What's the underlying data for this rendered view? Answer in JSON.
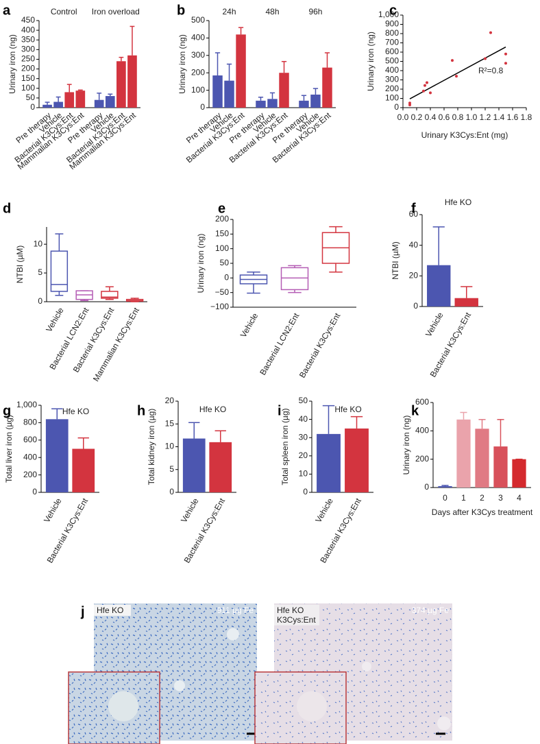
{
  "chart_data": [
    {
      "panel": "a",
      "type": "bar",
      "ylabel": "Urinary iron (ng)",
      "groups": [
        "Control",
        "Iron overload"
      ],
      "categories": [
        "Pre therapy",
        "Vehicle",
        "Bacterial K3Cys:Ent",
        "Mammalian K3Cys:Ent",
        "Pre therapy",
        "Vehicle",
        "Bacterial K3Cys:Ent",
        "Mammalian K3Cys:Ent"
      ],
      "values": [
        15,
        30,
        80,
        88,
        40,
        60,
        240,
        270
      ],
      "errors": [
        13,
        25,
        40,
        3,
        35,
        10,
        20,
        150
      ],
      "colors": [
        "#4c56b0",
        "#4c56b0",
        "#d3343f",
        "#d3343f",
        "#4c56b0",
        "#4c56b0",
        "#d3343f",
        "#d3343f"
      ],
      "ylim": [
        0,
        450
      ],
      "yticks": [
        0,
        50,
        100,
        150,
        200,
        250,
        300,
        350,
        400,
        450
      ]
    },
    {
      "panel": "b",
      "type": "bar",
      "ylabel": "Urinary iron (ng)",
      "groups": [
        "24h",
        "48h",
        "96h"
      ],
      "categories": [
        "Pre therapy",
        "Vehicle",
        "Bacterial K3Cys:Ent",
        "Pre therapy",
        "Vehicle",
        "Bacterial K3Cys:Ent",
        "Pre therapy",
        "Vehicle",
        "Bacterial K3Cys:Ent"
      ],
      "values": [
        185,
        155,
        420,
        40,
        50,
        200,
        40,
        75,
        230
      ],
      "errors": [
        130,
        95,
        40,
        20,
        35,
        65,
        30,
        35,
        85
      ],
      "colors": [
        "#4c56b0",
        "#4c56b0",
        "#d3343f",
        "#4c56b0",
        "#4c56b0",
        "#d3343f",
        "#4c56b0",
        "#4c56b0",
        "#d3343f"
      ],
      "ylim": [
        0,
        500
      ],
      "yticks": [
        0,
        100,
        200,
        300,
        400,
        500
      ]
    },
    {
      "panel": "c",
      "type": "scatter",
      "ylabel": "Urinary iron (ng)",
      "xlabel": "Urinary K3Cys:Ent (mg)",
      "color": "#d3343f",
      "x": [
        0.1,
        0.1,
        0.3,
        0.32,
        0.35,
        0.4,
        0.72,
        0.78,
        1.2,
        1.28,
        1.5,
        1.5
      ],
      "y": [
        30,
        50,
        180,
        240,
        270,
        160,
        510,
        340,
        530,
        810,
        580,
        480
      ],
      "fit": {
        "x": [
          0.1,
          1.5
        ],
        "y": [
          95,
          655
        ]
      },
      "annotation": "R²=0.8",
      "xlim": [
        0,
        1.8
      ],
      "xticks": [
        {
          "value": 0,
          "label": "0.0"
        },
        0.2,
        0.4,
        0.6,
        0.8,
        {
          "value": 1,
          "label": "1.0"
        },
        1.2,
        1.4,
        1.6,
        1.8
      ],
      "ylim": [
        0,
        1000
      ],
      "yticks": [
        0,
        100,
        200,
        300,
        400,
        500,
        600,
        700,
        800,
        900,
        {
          "value": 1000,
          "label": "1,000"
        }
      ]
    },
    {
      "panel": "d",
      "type": "box",
      "ylabel": "NTBI (µM)",
      "categories": [
        "Vehicle",
        "Bacterial LCN2:Ent",
        "Bacterial K3Cys:Ent",
        "Mammalian K3Cys:Ent"
      ],
      "boxes": [
        {
          "min": 1.1,
          "q1": 1.8,
          "median": 3,
          "q3": 8.8,
          "max": 11.8
        },
        {
          "min": 0.2,
          "q1": 0.4,
          "median": 1.2,
          "q3": 1.9,
          "max": 1.9
        },
        {
          "min": 0.4,
          "q1": 0.6,
          "median": 0.8,
          "q3": 1.8,
          "max": 2.6
        },
        {
          "min": 0,
          "q1": 0.1,
          "median": 0.2,
          "q3": 0.4,
          "max": 0.6
        }
      ],
      "colors": [
        "#4c56b0",
        "#b45cb4",
        "#d3343f",
        "#d3343f"
      ],
      "ylim": [
        0,
        13
      ],
      "yticks": [
        0,
        5,
        10
      ]
    },
    {
      "panel": "e",
      "type": "box",
      "ylabel": "Urinary iron (ng)",
      "categories": [
        "Vehicle",
        "Bacterial LCN2:Ent",
        "Bacterial K3Cys:Ent"
      ],
      "boxes": [
        {
          "min": -52,
          "q1": -20,
          "median": -5,
          "q3": 10,
          "max": 20
        },
        {
          "min": -50,
          "q1": -40,
          "median": 0,
          "q3": 35,
          "max": 42
        },
        {
          "min": 20,
          "q1": 50,
          "median": 103,
          "q3": 155,
          "max": 175
        }
      ],
      "colors": [
        "#4c56b0",
        "#b45cb4",
        "#d3343f"
      ],
      "ylim": [
        -100,
        200
      ],
      "yticks": [
        {
          "value": -100,
          "label": "−100"
        },
        {
          "value": -50,
          "label": "−50"
        },
        0,
        50,
        100,
        150,
        200
      ]
    },
    {
      "panel": "f",
      "type": "bar",
      "subtitle": "Hfe KO",
      "ylabel": "NTBI (µM)",
      "categories": [
        "Vehicle",
        "Bacterial K3Cys:Ent"
      ],
      "values": [
        27,
        5.5
      ],
      "errors": [
        25,
        7.5
      ],
      "colors": [
        "#4c56b0",
        "#d3343f"
      ],
      "ylim": [
        0,
        60
      ],
      "yticks": [
        0,
        20,
        40,
        60
      ]
    },
    {
      "panel": "g",
      "type": "bar",
      "subtitle": "Hfe KO",
      "ylabel": "Total liver iron (µg)",
      "categories": [
        "Vehicle",
        "Bacterial K3Cys:Ent"
      ],
      "values": [
        840,
        500
      ],
      "errors": [
        120,
        125
      ],
      "colors": [
        "#4c56b0",
        "#d3343f"
      ],
      "ylim": [
        0,
        1000
      ],
      "yticks": [
        0,
        200,
        400,
        600,
        800,
        {
          "value": 1000,
          "label": "1,000"
        }
      ]
    },
    {
      "panel": "h",
      "type": "bar",
      "subtitle": "Hfe KO",
      "ylabel": "Total kidney iron (µg)",
      "categories": [
        "Vehicle",
        "Bacterial K3Cys:Ent"
      ],
      "values": [
        11.8,
        11
      ],
      "errors": [
        3.5,
        2.5
      ],
      "colors": [
        "#4c56b0",
        "#d3343f"
      ],
      "ylim": [
        0,
        20
      ],
      "yticks": [
        0,
        5,
        10,
        15,
        20
      ]
    },
    {
      "panel": "i",
      "type": "bar",
      "subtitle": "Hfe KO",
      "ylabel": "Total spleen iron (µg)",
      "categories": [
        "Vehicle",
        "Bacterial K3Cys:Ent"
      ],
      "values": [
        32,
        35
      ],
      "errors": [
        15.5,
        6.5
      ],
      "colors": [
        "#4c56b0",
        "#d3343f"
      ],
      "ylim": [
        0,
        50
      ],
      "yticks": [
        0,
        10,
        20,
        30,
        40,
        50
      ]
    },
    {
      "panel": "k",
      "type": "bar",
      "ylabel": "Urinary iron (ng)",
      "xlabel": "Days after K3Cys treatment",
      "categories": [
        "0",
        "1",
        "2",
        "3",
        "4"
      ],
      "values": [
        10,
        480,
        415,
        290,
        200
      ],
      "errors": [
        5,
        50,
        65,
        190,
        0
      ],
      "colors": [
        "#4c56b0",
        "#eaa3ab",
        "#e07a84",
        "#d8515b",
        "#d42a2e"
      ],
      "ylim": [
        0,
        600
      ],
      "yticks": [
        0,
        200,
        400,
        600
      ]
    }
  ],
  "panel_j": {
    "label": "j",
    "images": [
      {
        "title": [
          "Hfe KO"
        ],
        "amount": "911 µg Fe"
      },
      {
        "title": [
          "Hfe KO",
          "K3Cys:Ent"
        ],
        "amount": "374 µg Fe"
      }
    ]
  }
}
